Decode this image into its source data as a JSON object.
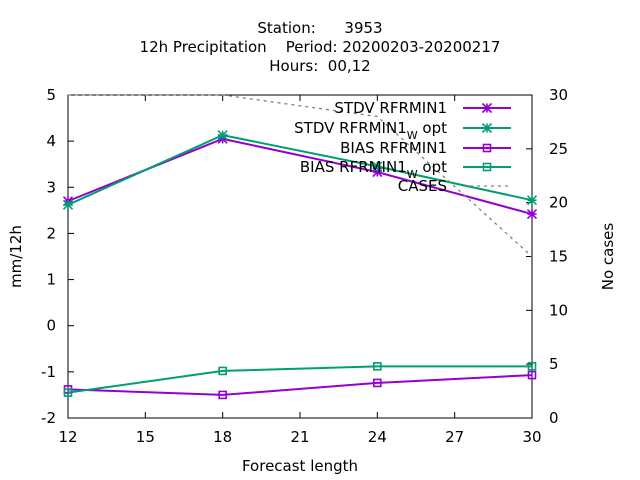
{
  "chart_data": {
    "type": "line",
    "title_lines": [
      "Station:      3953",
      "12h Precipitation    Period: 20200203-20200217",
      "Hours:  00,12"
    ],
    "xlabel": "Forecast length",
    "ylabel": "mm/12h",
    "y2label": "No cases",
    "xlim": [
      12,
      30
    ],
    "ylim": [
      -2,
      5
    ],
    "y2lim": [
      0,
      30
    ],
    "xticks": [
      12,
      15,
      18,
      21,
      24,
      27,
      30
    ],
    "yticks": [
      -2,
      -1,
      0,
      1,
      2,
      3,
      4,
      5
    ],
    "y2ticks": [
      0,
      5,
      10,
      15,
      20,
      25,
      30
    ],
    "grid": false,
    "legend_position": "top-right",
    "series": [
      {
        "name": "STDV RFRMIN1",
        "sub": "",
        "suffix": "",
        "color": "#9400d3",
        "marker": "star",
        "axis": "y1",
        "dashed": false,
        "x": [
          12,
          18,
          24,
          30
        ],
        "values": [
          2.7,
          4.05,
          3.33,
          2.42
        ]
      },
      {
        "name": "STDV RFRMIN1",
        "sub": "W",
        "suffix": " opt",
        "color": "#009e73",
        "marker": "star",
        "axis": "y1",
        "dashed": false,
        "x": [
          12,
          18,
          24,
          30
        ],
        "values": [
          2.62,
          4.13,
          3.45,
          2.72
        ]
      },
      {
        "name": "BIAS RFRMIN1",
        "sub": "",
        "suffix": "",
        "color": "#9400d3",
        "marker": "square",
        "axis": "y1",
        "dashed": false,
        "x": [
          12,
          18,
          24,
          30
        ],
        "values": [
          -1.38,
          -1.5,
          -1.24,
          -1.07
        ]
      },
      {
        "name": "BIAS RFRMIN1",
        "sub": "W",
        "suffix": " opt",
        "color": "#009e73",
        "marker": "square",
        "axis": "y1",
        "dashed": false,
        "x": [
          12,
          18,
          24,
          30
        ],
        "values": [
          -1.45,
          -0.98,
          -0.88,
          -0.88
        ]
      },
      {
        "name": "CASES",
        "sub": "",
        "suffix": "",
        "color": "#808080",
        "marker": "none",
        "axis": "y2",
        "dashed": true,
        "x": [
          12,
          18,
          24,
          30
        ],
        "values": [
          30,
          30,
          28,
          15
        ]
      }
    ]
  }
}
